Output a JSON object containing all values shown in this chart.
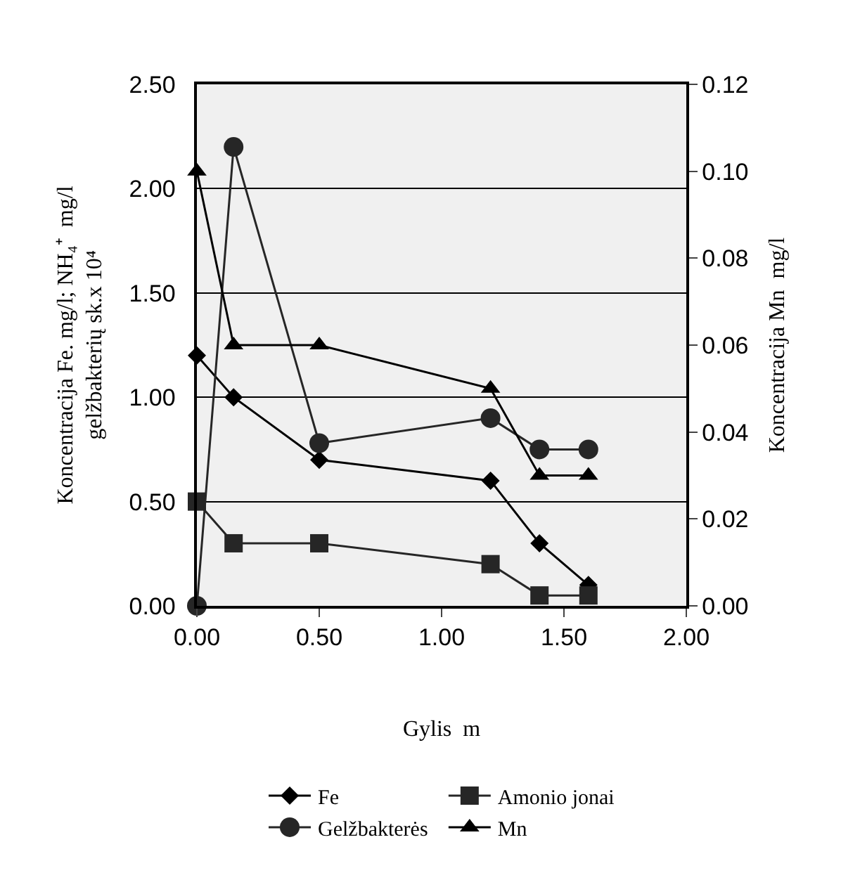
{
  "chart_data": {
    "type": "line",
    "xlabel": "Gylis  m",
    "ylabel": "Koncentracija Fe. mg/l; NH₄⁺  mg/l\ngelžbakterių sk.x 10⁴",
    "y2label": "Koncentracija Mn  mg/l",
    "x": [
      0,
      0.15,
      0.5,
      1.2,
      1.4,
      1.6
    ],
    "series": [
      {
        "name": "Fe",
        "color": "#000000",
        "marker": "diamond",
        "values": [
          1.2,
          1.0,
          0.7,
          0.6,
          0.3,
          0.1
        ]
      },
      {
        "name": "Amonio jonai",
        "color": "#262626",
        "marker": "square",
        "values": [
          0.5,
          0.3,
          0.3,
          0.2,
          0.05,
          0.05
        ]
      },
      {
        "name": "Gelžbakterės",
        "color": "#262626",
        "marker": "circle",
        "values": [
          0,
          2.2,
          0.78,
          0.9,
          0.75,
          0.75
        ]
      },
      {
        "name": "Mn",
        "color": "#000000",
        "marker": "triangle",
        "axis": "y2",
        "values": [
          0.1,
          0.06,
          0.06,
          0.05,
          0.03,
          0.03
        ]
      }
    ],
    "xlim": [
      0,
      2.0
    ],
    "xticks": [
      {
        "value": 0,
        "label": "0.00"
      },
      {
        "value": 0.5,
        "label": "0.50"
      },
      {
        "value": 1.0,
        "label": "1.00"
      },
      {
        "value": 1.5,
        "label": "1.50"
      },
      {
        "value": 2.0,
        "label": "2.00"
      }
    ],
    "ylim": [
      0,
      2.5
    ],
    "yticks": [
      {
        "value": 0,
        "label": "0.00"
      },
      {
        "value": 0.5,
        "label": "0.50"
      },
      {
        "value": 1.0,
        "label": "1.00"
      },
      {
        "value": 1.5,
        "label": "1.50"
      },
      {
        "value": 2.0,
        "label": "2.00"
      },
      {
        "value": 2.5,
        "label": "2.50"
      }
    ],
    "y2lim": [
      0,
      0.12
    ],
    "y2ticks": [
      {
        "value": 0,
        "label": "0.00"
      },
      {
        "value": 0.02,
        "label": "0.02"
      },
      {
        "value": 0.04,
        "label": "0.04"
      },
      {
        "value": 0.06,
        "label": "0.06"
      },
      {
        "value": 0.08,
        "label": "0.08"
      },
      {
        "value": 0.1,
        "label": "0.10"
      },
      {
        "value": 0.12,
        "label": "0.12"
      }
    ],
    "grid": "y",
    "legend": "bottom"
  }
}
